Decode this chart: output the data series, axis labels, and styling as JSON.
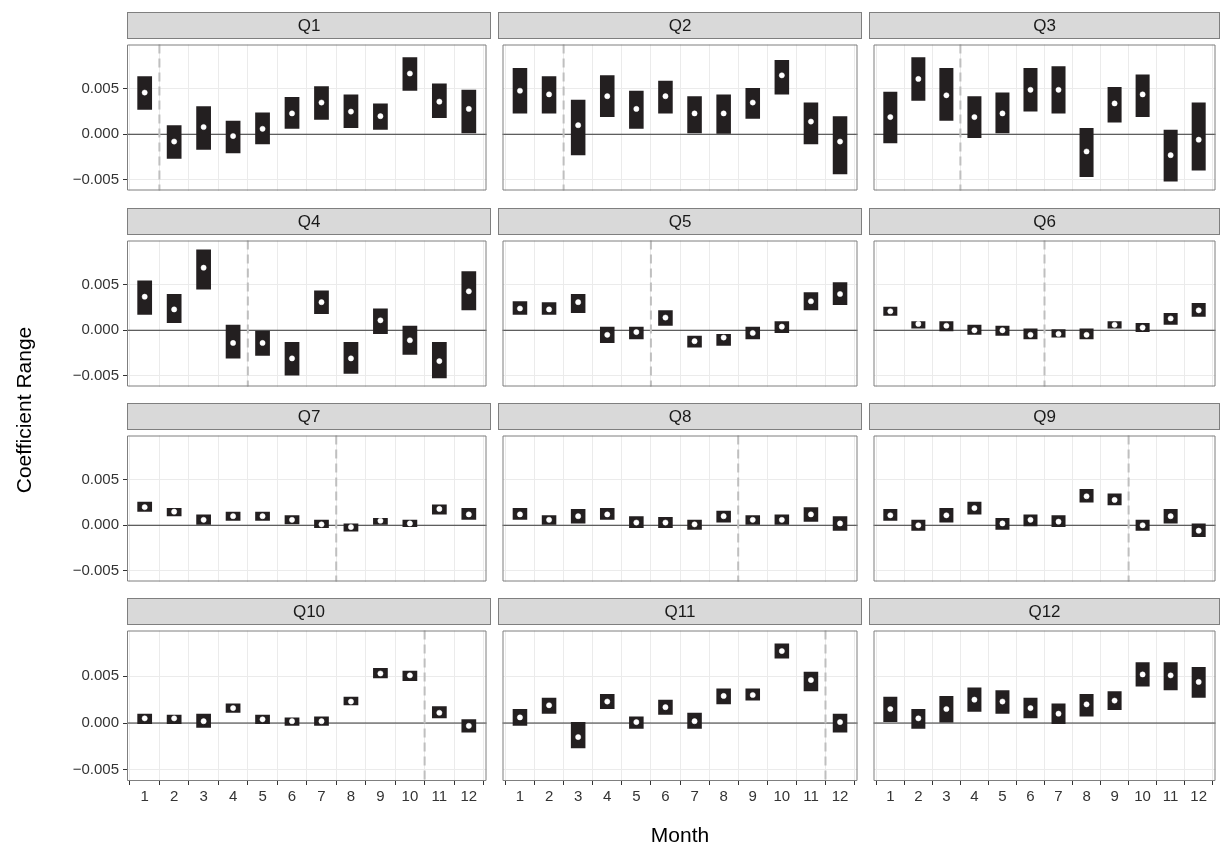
{
  "chart_data": [
    {
      "title": "Q1",
      "type": "bar",
      "x": [
        1,
        2,
        3,
        4,
        5,
        6,
        7,
        8,
        9,
        10,
        11,
        12
      ],
      "xlim": [
        0.4,
        12.6
      ],
      "xticks": [
        1,
        2,
        3,
        4,
        5,
        6,
        7,
        8,
        9,
        10,
        11,
        12
      ],
      "ylim": [
        -0.0062,
        0.0099
      ],
      "yticks": [
        {
          "value": -0.005,
          "label": "−0.005"
        },
        {
          "value": 0,
          "label": "0.000"
        },
        {
          "value": 0.005,
          "label": "0.005"
        }
      ],
      "grid": true,
      "tick_labels": "y",
      "series": [
        {
          "type": "bar",
          "color": "#231f20",
          "base": [
            0.0027,
            -0.0027,
            -0.0017,
            -0.0021,
            -0.0011,
            0.0006,
            0.0016,
            0.0007,
            0.0005,
            0.0048,
            0.0018,
            0.0001
          ],
          "values": [
            0.0037,
            0.0037,
            0.0048,
            0.0036,
            0.0035,
            0.0035,
            0.0037,
            0.0037,
            0.0029,
            0.0037,
            0.0038,
            0.0048
          ]
        },
        {
          "type": "scatter",
          "color": "#ffffff",
          "marker": "circle",
          "values": [
            0.0046,
            -0.0008,
            0.0008,
            -0.0002,
            0.0006,
            0.0023,
            0.0035,
            0.0025,
            0.002,
            0.0067,
            0.0036,
            0.0028
          ]
        }
      ],
      "ref_lines": [
        {
          "axis": "y",
          "value": 0,
          "color": "#333333",
          "line_style": "solid"
        },
        {
          "axis": "x",
          "value": 1.5,
          "color": "#bfbfbf",
          "line_style": "dashed"
        }
      ]
    },
    {
      "title": "Q2",
      "type": "bar",
      "x": [
        1,
        2,
        3,
        4,
        5,
        6,
        7,
        8,
        9,
        10,
        11,
        12
      ],
      "xlim": [
        0.4,
        12.6
      ],
      "xticks": [
        1,
        2,
        3,
        4,
        5,
        6,
        7,
        8,
        9,
        10,
        11,
        12
      ],
      "ylim": [
        -0.0062,
        0.0099
      ],
      "yticks": [
        -0.005,
        0,
        0.005
      ],
      "grid": true,
      "tick_labels": false,
      "series": [
        {
          "type": "bar",
          "color": "#231f20",
          "base": [
            0.0023,
            0.0023,
            -0.0023,
            0.0019,
            0.0006,
            0.0023,
            0.0001,
            0,
            0.0017,
            0.0044,
            -0.0011,
            -0.0044
          ],
          "values": [
            0.005,
            0.0041,
            0.0061,
            0.0046,
            0.0042,
            0.0036,
            0.0041,
            0.0044,
            0.0034,
            0.0038,
            0.0046,
            0.0064
          ]
        },
        {
          "type": "scatter",
          "color": "#ffffff",
          "marker": "circle",
          "values": [
            0.0048,
            0.0044,
            0.001,
            0.0042,
            0.0028,
            0.0042,
            0.0023,
            0.0023,
            0.0035,
            0.0065,
            0.0014,
            -0.0008
          ]
        }
      ],
      "ref_lines": [
        {
          "axis": "y",
          "value": 0,
          "color": "#333333",
          "line_style": "solid"
        },
        {
          "axis": "x",
          "value": 2.5,
          "color": "#bfbfbf",
          "line_style": "dashed"
        }
      ]
    },
    {
      "title": "Q3",
      "type": "bar",
      "x": [
        1,
        2,
        3,
        4,
        5,
        6,
        7,
        8,
        9,
        10,
        11,
        12
      ],
      "xlim": [
        0.4,
        12.6
      ],
      "xticks": [
        1,
        2,
        3,
        4,
        5,
        6,
        7,
        8,
        9,
        10,
        11,
        12
      ],
      "ylim": [
        -0.0062,
        0.0099
      ],
      "yticks": [
        -0.005,
        0,
        0.005
      ],
      "grid": true,
      "tick_labels": false,
      "series": [
        {
          "type": "bar",
          "color": "#231f20",
          "base": [
            -0.001,
            0.0037,
            0.0015,
            -0.0004,
            0.0001,
            0.0025,
            0.0023,
            -0.0047,
            0.0013,
            0.0019,
            -0.0052,
            -0.004
          ],
          "values": [
            0.0057,
            0.0048,
            0.0058,
            0.0046,
            0.0045,
            0.0048,
            0.0052,
            0.0054,
            0.0039,
            0.0047,
            0.0057,
            0.0075
          ]
        },
        {
          "type": "scatter",
          "color": "#ffffff",
          "marker": "circle",
          "values": [
            0.0019,
            0.0061,
            0.0043,
            0.0019,
            0.0023,
            0.0049,
            0.0049,
            -0.0019,
            0.0034,
            0.0044,
            -0.0023,
            -0.0006
          ]
        }
      ],
      "ref_lines": [
        {
          "axis": "y",
          "value": 0,
          "color": "#333333",
          "line_style": "solid"
        },
        {
          "axis": "x",
          "value": 3.5,
          "color": "#bfbfbf",
          "line_style": "dashed"
        }
      ]
    },
    {
      "title": "Q4",
      "type": "bar",
      "x": [
        1,
        2,
        3,
        4,
        5,
        6,
        7,
        8,
        9,
        10,
        11,
        12
      ],
      "xlim": [
        0.4,
        12.6
      ],
      "xticks": [
        1,
        2,
        3,
        4,
        5,
        6,
        7,
        8,
        9,
        10,
        11,
        12
      ],
      "ylim": [
        -0.0062,
        0.0099
      ],
      "yticks": [
        {
          "value": -0.005,
          "label": "−0.005"
        },
        {
          "value": 0,
          "label": "0.000"
        },
        {
          "value": 0.005,
          "label": "0.005"
        }
      ],
      "grid": true,
      "tick_labels": "y",
      "series": [
        {
          "type": "bar",
          "color": "#231f20",
          "base": [
            0.0017,
            0.0008,
            0.0045,
            -0.0031,
            -0.0028,
            -0.005,
            0.0018,
            -0.0048,
            -0.0004,
            -0.0027,
            -0.0053,
            0.0022
          ],
          "values": [
            0.0038,
            0.0032,
            0.0044,
            0.0037,
            0.0028,
            0.0037,
            0.0026,
            0.0035,
            0.0028,
            0.0032,
            0.004,
            0.0043
          ]
        },
        {
          "type": "scatter",
          "color": "#ffffff",
          "marker": "circle",
          "values": [
            0.0037,
            0.0023,
            0.0069,
            -0.0014,
            -0.0014,
            -0.0031,
            0.0031,
            -0.0031,
            0.0011,
            -0.0011,
            -0.0034,
            0.0043
          ]
        }
      ],
      "ref_lines": [
        {
          "axis": "y",
          "value": 0,
          "color": "#333333",
          "line_style": "solid"
        },
        {
          "axis": "x",
          "value": 4.5,
          "color": "#bfbfbf",
          "line_style": "dashed"
        }
      ]
    },
    {
      "title": "Q5",
      "type": "bar",
      "x": [
        1,
        2,
        3,
        4,
        5,
        6,
        7,
        8,
        9,
        10,
        11,
        12
      ],
      "xlim": [
        0.4,
        12.6
      ],
      "xticks": [
        1,
        2,
        3,
        4,
        5,
        6,
        7,
        8,
        9,
        10,
        11,
        12
      ],
      "ylim": [
        -0.0062,
        0.0099
      ],
      "yticks": [
        -0.005,
        0,
        0.005
      ],
      "grid": true,
      "tick_labels": false,
      "series": [
        {
          "type": "bar",
          "color": "#231f20",
          "base": [
            0.0017,
            0.0017,
            0.0019,
            -0.0014,
            -0.001,
            0.0005,
            -0.0019,
            -0.0017,
            -0.001,
            -0.0003,
            0.0022,
            0.0028
          ],
          "values": [
            0.0015,
            0.0014,
            0.0021,
            0.0018,
            0.0014,
            0.0017,
            0.0013,
            0.0013,
            0.0014,
            0.0013,
            0.002,
            0.0025
          ]
        },
        {
          "type": "scatter",
          "color": "#ffffff",
          "marker": "circle",
          "values": [
            0.0024,
            0.0023,
            0.0031,
            -0.0005,
            -0.0002,
            0.0014,
            -0.0012,
            -0.0008,
            -0.0003,
            0.0004,
            0.0032,
            0.004
          ]
        }
      ],
      "ref_lines": [
        {
          "axis": "y",
          "value": 0,
          "color": "#333333",
          "line_style": "solid"
        },
        {
          "axis": "x",
          "value": 5.5,
          "color": "#bfbfbf",
          "line_style": "dashed"
        }
      ]
    },
    {
      "title": "Q6",
      "type": "bar",
      "x": [
        1,
        2,
        3,
        4,
        5,
        6,
        7,
        8,
        9,
        10,
        11,
        12
      ],
      "xlim": [
        0.4,
        12.6
      ],
      "xticks": [
        1,
        2,
        3,
        4,
        5,
        6,
        7,
        8,
        9,
        10,
        11,
        12
      ],
      "ylim": [
        -0.0062,
        0.0099
      ],
      "yticks": [
        -0.005,
        0,
        0.005
      ],
      "grid": true,
      "tick_labels": false,
      "series": [
        {
          "type": "bar",
          "color": "#231f20",
          "base": [
            0.0016,
            0.0002,
            -0.0001,
            -0.0005,
            -0.0006,
            -0.001,
            -0.0008,
            -0.001,
            0.0002,
            -0.0002,
            0.0006,
            0.0015
          ],
          "values": [
            0.001,
            0.0008,
            0.0011,
            0.0011,
            0.0011,
            0.0012,
            0.0009,
            0.0012,
            0.0008,
            0.001,
            0.0013,
            0.0015
          ]
        },
        {
          "type": "scatter",
          "color": "#ffffff",
          "marker": "circle",
          "values": [
            0.0021,
            0.0007,
            0.0005,
            0,
            0,
            -0.0005,
            -0.0004,
            -0.0005,
            0.0006,
            0.0003,
            0.0013,
            0.0022
          ]
        }
      ],
      "ref_lines": [
        {
          "axis": "y",
          "value": 0,
          "color": "#333333",
          "line_style": "solid"
        },
        {
          "axis": "x",
          "value": 6.5,
          "color": "#bfbfbf",
          "line_style": "dashed"
        }
      ]
    },
    {
      "title": "Q7",
      "ylabel": "Coefficient Range",
      "type": "bar",
      "x": [
        1,
        2,
        3,
        4,
        5,
        6,
        7,
        8,
        9,
        10,
        11,
        12
      ],
      "xlim": [
        0.4,
        12.6
      ],
      "xticks": [
        1,
        2,
        3,
        4,
        5,
        6,
        7,
        8,
        9,
        10,
        11,
        12
      ],
      "ylim": [
        -0.0062,
        0.0099
      ],
      "yticks": [
        {
          "value": -0.005,
          "label": "−0.005"
        },
        {
          "value": 0,
          "label": "0.000"
        },
        {
          "value": 0.005,
          "label": "0.005"
        }
      ],
      "grid": true,
      "tick_labels": "y",
      "series": [
        {
          "type": "bar",
          "color": "#231f20",
          "base": [
            0.0015,
            0.001,
            0,
            0.0005,
            0.0005,
            0.0001,
            -0.0003,
            -0.0007,
            0,
            -0.0002,
            0.0012,
            0.0006
          ],
          "values": [
            0.0011,
            0.0009,
            0.0012,
            0.001,
            0.001,
            0.001,
            0.0009,
            0.0009,
            0.0008,
            0.0008,
            0.0011,
            0.0013
          ]
        },
        {
          "type": "scatter",
          "color": "#ffffff",
          "marker": "circle",
          "values": [
            0.002,
            0.0015,
            0.0006,
            0.001,
            0.001,
            0.0006,
            0.0001,
            -0.0002,
            0.0005,
            0.0002,
            0.0018,
            0.0012
          ]
        }
      ],
      "ref_lines": [
        {
          "axis": "y",
          "value": 0,
          "color": "#333333",
          "line_style": "solid"
        },
        {
          "axis": "x",
          "value": 7.5,
          "color": "#bfbfbf",
          "line_style": "dashed"
        }
      ]
    },
    {
      "title": "Q8",
      "type": "bar",
      "x": [
        1,
        2,
        3,
        4,
        5,
        6,
        7,
        8,
        9,
        10,
        11,
        12
      ],
      "xlim": [
        0.4,
        12.6
      ],
      "xticks": [
        1,
        2,
        3,
        4,
        5,
        6,
        7,
        8,
        9,
        10,
        11,
        12
      ],
      "ylim": [
        -0.0062,
        0.0099
      ],
      "yticks": [
        -0.005,
        0,
        0.005
      ],
      "grid": true,
      "tick_labels": false,
      "series": [
        {
          "type": "bar",
          "color": "#231f20",
          "base": [
            0.0006,
            0,
            0.0002,
            0.0006,
            -0.0003,
            -0.0003,
            -0.0005,
            0.0003,
            0,
            0,
            0.0004,
            -0.0006
          ],
          "values": [
            0.0013,
            0.0011,
            0.0016,
            0.0013,
            0.0013,
            0.0012,
            0.0011,
            0.0013,
            0.0011,
            0.0012,
            0.0016,
            0.0016
          ]
        },
        {
          "type": "scatter",
          "color": "#ffffff",
          "marker": "circle",
          "values": [
            0.0012,
            0.0006,
            0.001,
            0.0012,
            0.0003,
            0.0003,
            0.0001,
            0.001,
            0.0006,
            0.0006,
            0.0012,
            0.0002
          ]
        }
      ],
      "ref_lines": [
        {
          "axis": "y",
          "value": 0,
          "color": "#333333",
          "line_style": "solid"
        },
        {
          "axis": "x",
          "value": 8.5,
          "color": "#bfbfbf",
          "line_style": "dashed"
        }
      ]
    },
    {
      "title": "Q9",
      "type": "bar",
      "x": [
        1,
        2,
        3,
        4,
        5,
        6,
        7,
        8,
        9,
        10,
        11,
        12
      ],
      "xlim": [
        0.4,
        12.6
      ],
      "xticks": [
        1,
        2,
        3,
        4,
        5,
        6,
        7,
        8,
        9,
        10,
        11,
        12
      ],
      "ylim": [
        -0.0062,
        0.0099
      ],
      "yticks": [
        -0.005,
        0,
        0.005
      ],
      "grid": true,
      "tick_labels": false,
      "series": [
        {
          "type": "bar",
          "color": "#231f20",
          "base": [
            0.0005,
            -0.0006,
            0.0003,
            0.0012,
            -0.0005,
            -0.0001,
            -0.0002,
            0.0025,
            0.0022,
            -0.0006,
            0.0002,
            -0.0013
          ],
          "values": [
            0.0013,
            0.0012,
            0.0016,
            0.0014,
            0.0013,
            0.0013,
            0.0013,
            0.0015,
            0.0013,
            0.0012,
            0.0016,
            0.0015
          ]
        },
        {
          "type": "scatter",
          "color": "#ffffff",
          "marker": "circle",
          "values": [
            0.0011,
            0,
            0.0011,
            0.0019,
            0.0002,
            0.0006,
            0.0004,
            0.0032,
            0.0028,
            0,
            0.001,
            -0.0006
          ]
        }
      ],
      "ref_lines": [
        {
          "axis": "y",
          "value": 0,
          "color": "#333333",
          "line_style": "solid"
        },
        {
          "axis": "x",
          "value": 9.5,
          "color": "#bfbfbf",
          "line_style": "dashed"
        }
      ]
    },
    {
      "title": "Q10",
      "type": "bar",
      "x": [
        1,
        2,
        3,
        4,
        5,
        6,
        7,
        8,
        9,
        10,
        11,
        12
      ],
      "xlim": [
        0.4,
        12.6
      ],
      "xticks": [
        1,
        2,
        3,
        4,
        5,
        6,
        7,
        8,
        9,
        10,
        11,
        12
      ],
      "ylim": [
        -0.0062,
        0.0099
      ],
      "yticks": [
        {
          "value": -0.005,
          "label": "−0.005"
        },
        {
          "value": 0,
          "label": "0.000"
        },
        {
          "value": 0.005,
          "label": "0.005"
        }
      ],
      "grid": true,
      "series": [
        {
          "type": "bar",
          "color": "#231f20",
          "base": [
            -0.0001,
            -0.0001,
            -0.0005,
            0.0011,
            -0.0001,
            -0.0003,
            -0.0003,
            0.0019,
            0.0048,
            0.0045,
            0.0005,
            -0.001
          ],
          "values": [
            0.0011,
            0.001,
            0.0015,
            0.001,
            0.001,
            0.0009,
            0.001,
            0.0009,
            0.0011,
            0.0011,
            0.0013,
            0.0014
          ]
        },
        {
          "type": "scatter",
          "color": "#ffffff",
          "marker": "circle",
          "values": [
            0.0005,
            0.0005,
            0.0002,
            0.0016,
            0.0004,
            0.0002,
            0.0002,
            0.0023,
            0.0053,
            0.0051,
            0.0011,
            -0.0003
          ]
        }
      ],
      "ref_lines": [
        {
          "axis": "y",
          "value": 0,
          "color": "#333333",
          "line_style": "solid"
        },
        {
          "axis": "x",
          "value": 10.5,
          "color": "#bfbfbf",
          "line_style": "dashed"
        }
      ]
    },
    {
      "title": "Q11",
      "xlabel": "Month",
      "type": "bar",
      "x": [
        1,
        2,
        3,
        4,
        5,
        6,
        7,
        8,
        9,
        10,
        11,
        12
      ],
      "xlim": [
        0.4,
        12.6
      ],
      "xticks": [
        1,
        2,
        3,
        4,
        5,
        6,
        7,
        8,
        9,
        10,
        11,
        12
      ],
      "ylim": [
        -0.0062,
        0.0099
      ],
      "yticks": [
        -0.005,
        0,
        0.005
      ],
      "grid": true,
      "tick_labels": "x",
      "series": [
        {
          "type": "bar",
          "color": "#231f20",
          "base": [
            -0.0003,
            0.001,
            -0.0027,
            0.0015,
            -0.0006,
            0.0009,
            -0.0006,
            0.002,
            0.0024,
            0.0069,
            0.0034,
            -0.001
          ],
          "values": [
            0.0018,
            0.0017,
            0.0028,
            0.0016,
            0.0013,
            0.0016,
            0.0017,
            0.0017,
            0.0013,
            0.0016,
            0.0021,
            0.002
          ]
        },
        {
          "type": "scatter",
          "color": "#ffffff",
          "marker": "circle",
          "values": [
            0.0006,
            0.0019,
            -0.0015,
            0.0023,
            0.0001,
            0.0017,
            0.0002,
            0.0029,
            0.003,
            0.0077,
            0.0046,
            0.0001
          ]
        }
      ],
      "ref_lines": [
        {
          "axis": "y",
          "value": 0,
          "color": "#333333",
          "line_style": "solid"
        },
        {
          "axis": "x",
          "value": 11.5,
          "color": "#bfbfbf",
          "line_style": "dashed"
        }
      ]
    },
    {
      "title": "Q12",
      "type": "bar",
      "x": [
        1,
        2,
        3,
        4,
        5,
        6,
        7,
        8,
        9,
        10,
        11,
        12
      ],
      "xlim": [
        0.4,
        12.6
      ],
      "xticks": [
        1,
        2,
        3,
        4,
        5,
        6,
        7,
        8,
        9,
        10,
        11,
        12
      ],
      "ylim": [
        -0.0062,
        0.0099
      ],
      "yticks": [
        -0.005,
        0,
        0.005
      ],
      "grid": true,
      "tick_labels": "x",
      "series": [
        {
          "type": "bar",
          "color": "#231f20",
          "base": [
            0.0001,
            -0.0006,
            0,
            0.0012,
            0.001,
            0.0005,
            -0.0001,
            0.0007,
            0.0014,
            0.0039,
            0.0035,
            0.0027
          ],
          "values": [
            0.0027,
            0.0021,
            0.0029,
            0.0026,
            0.0025,
            0.0022,
            0.0022,
            0.0024,
            0.002,
            0.0026,
            0.003,
            0.0033
          ]
        },
        {
          "type": "scatter",
          "color": "#ffffff",
          "marker": "circle",
          "values": [
            0.0015,
            0.0005,
            0.0015,
            0.0025,
            0.0023,
            0.0016,
            0.001,
            0.002,
            0.0024,
            0.0052,
            0.0051,
            0.0044
          ]
        }
      ],
      "ref_lines": [
        {
          "axis": "y",
          "value": 0,
          "color": "#333333",
          "line_style": "solid"
        }
      ]
    }
  ]
}
